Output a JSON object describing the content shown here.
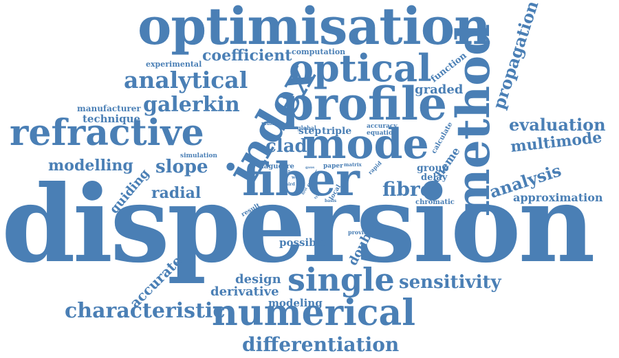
{
  "colors": {
    "word": "#4a7fb5",
    "background": "#ffffff"
  },
  "cloud": {
    "words": [
      {
        "text": "dispersion"
      },
      {
        "text": "optimisation"
      },
      {
        "text": "optical"
      },
      {
        "text": "profile"
      },
      {
        "text": "method"
      },
      {
        "text": "mode"
      },
      {
        "text": "fiber"
      },
      {
        "text": "index"
      },
      {
        "text": "refractive"
      },
      {
        "text": "numerical"
      },
      {
        "text": "single"
      },
      {
        "text": "characteristic"
      },
      {
        "text": "differentiation"
      },
      {
        "text": "sensitivity"
      },
      {
        "text": "propagation"
      },
      {
        "text": "evaluation"
      },
      {
        "text": "multimode"
      },
      {
        "text": "analytical"
      },
      {
        "text": "galerkin"
      },
      {
        "text": "coefficient"
      },
      {
        "text": "modelling"
      },
      {
        "text": "slope"
      },
      {
        "text": "fibre"
      },
      {
        "text": "analysis"
      },
      {
        "text": "approximation"
      },
      {
        "text": "radial"
      },
      {
        "text": "clad"
      },
      {
        "text": "graded"
      },
      {
        "text": "design"
      },
      {
        "text": "derivative"
      },
      {
        "text": "modeling"
      },
      {
        "text": "accurate"
      },
      {
        "text": "guiding"
      },
      {
        "text": "double"
      },
      {
        "text": "possible"
      },
      {
        "text": "technique"
      },
      {
        "text": "manufacturer"
      },
      {
        "text": "experimental"
      },
      {
        "text": "computation"
      },
      {
        "text": "function"
      },
      {
        "text": "scheme"
      },
      {
        "text": "group"
      },
      {
        "text": "delay"
      },
      {
        "text": "chromatic"
      },
      {
        "text": "step"
      },
      {
        "text": "triple"
      },
      {
        "text": "accuracy"
      },
      {
        "text": "equation"
      },
      {
        "text": "calculate"
      },
      {
        "text": "simulation"
      },
      {
        "text": "laguerre"
      },
      {
        "text": "global"
      },
      {
        "text": "multiple"
      },
      {
        "text": "paper"
      },
      {
        "text": "matrix"
      },
      {
        "text": "rapid"
      },
      {
        "text": "result"
      },
      {
        "text": "provide"
      },
      {
        "text": "local"
      },
      {
        "text": "order"
      },
      {
        "text": "work"
      },
      {
        "text": "third"
      },
      {
        "text": "gaus"
      },
      {
        "text": "basis"
      },
      {
        "text": "first"
      },
      {
        "text": "test"
      },
      {
        "text": "type"
      }
    ]
  }
}
